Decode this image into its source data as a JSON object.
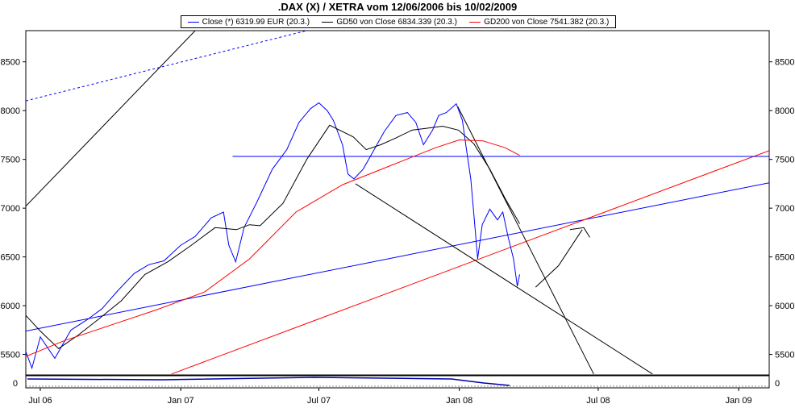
{
  "chart_data": {
    "type": "line",
    "title": ".DAX (X) / XETRA vom 12/06/2006 bis 10/02/2009",
    "legend": [
      {
        "label": "Close (*) 6319.99 EUR (20.3.)",
        "color": "#0000ff"
      },
      {
        "label": "GD50 von Close 6834.339 (20.3.)",
        "color": "#000000"
      },
      {
        "label": "GD200 von Close 7541.382 (20.3.)",
        "color": "#ff0000"
      }
    ],
    "x_ticks": [
      "Jul 06",
      "Jan 07",
      "Jul 07",
      "Jan 08",
      "Jul 08",
      "Jan 09"
    ],
    "x_range": [
      "2006-06-12",
      "2009-02-10"
    ],
    "y_ticks": [
      5500,
      6000,
      6500,
      7000,
      7500,
      8000,
      8500
    ],
    "y_range": [
      5290,
      8820
    ],
    "volume_tick": "0",
    "grid": false,
    "series": [
      {
        "name": "Close (*) 6319.99 EUR (20.3.)",
        "color": "#0000ff",
        "x": [
          "2006-06-12",
          "2006-06-20",
          "2006-07-01",
          "2006-07-20",
          "2006-08-10",
          "2006-09-01",
          "2006-09-20",
          "2006-10-10",
          "2006-11-01",
          "2006-11-20",
          "2006-12-10",
          "2007-01-01",
          "2007-01-20",
          "2007-02-10",
          "2007-02-26",
          "2007-03-05",
          "2007-03-14",
          "2007-03-25",
          "2007-04-10",
          "2007-05-01",
          "2007-05-20",
          "2007-06-05",
          "2007-06-20",
          "2007-07-01",
          "2007-07-12",
          "2007-07-20",
          "2007-08-01",
          "2007-08-08",
          "2007-08-16",
          "2007-08-28",
          "2007-09-10",
          "2007-09-25",
          "2007-10-10",
          "2007-10-25",
          "2007-11-05",
          "2007-11-15",
          "2007-11-27",
          "2007-12-05",
          "2007-12-15",
          "2007-12-28",
          "2008-01-05",
          "2008-01-10",
          "2008-01-16",
          "2008-01-21",
          "2008-01-25",
          "2008-01-31",
          "2008-02-10",
          "2008-02-20",
          "2008-02-27",
          "2008-03-05",
          "2008-03-12",
          "2008-03-17",
          "2008-03-20"
        ],
        "values": [
          5530,
          5360,
          5680,
          5460,
          5750,
          5860,
          5970,
          6150,
          6330,
          6420,
          6460,
          6620,
          6710,
          6900,
          6960,
          6620,
          6450,
          6800,
          7050,
          7400,
          7600,
          7880,
          8020,
          8080,
          8000,
          7900,
          7650,
          7350,
          7300,
          7400,
          7580,
          7790,
          7950,
          7980,
          7880,
          7650,
          7800,
          7950,
          7980,
          8070,
          7900,
          7620,
          7300,
          6850,
          6480,
          6830,
          6990,
          6880,
          6960,
          6700,
          6480,
          6200,
          6320
        ]
      },
      {
        "name": "GD50 von Close 6834.339 (20.3.)",
        "color": "#000000",
        "x": [
          "2006-06-12",
          "2006-07-01",
          "2006-07-25",
          "2006-08-20",
          "2006-09-15",
          "2006-10-15",
          "2006-11-15",
          "2006-12-15",
          "2007-01-15",
          "2007-02-15",
          "2007-03-15",
          "2007-04-01",
          "2007-04-15",
          "2007-05-15",
          "2007-06-15",
          "2007-07-15",
          "2007-08-15",
          "2007-09-01",
          "2007-09-20",
          "2007-10-10",
          "2007-10-31",
          "2007-11-20",
          "2007-12-10",
          "2007-12-31",
          "2008-01-20",
          "2008-02-10",
          "2008-03-01",
          "2008-03-20"
        ],
        "values": [
          5900,
          5740,
          5560,
          5700,
          5860,
          6050,
          6320,
          6450,
          6620,
          6800,
          6780,
          6830,
          6820,
          7050,
          7500,
          7850,
          7730,
          7600,
          7650,
          7720,
          7800,
          7820,
          7840,
          7800,
          7660,
          7400,
          7100,
          6840
        ]
      },
      {
        "name": "GD200 von Close 7541.382 (20.3.)",
        "color": "#ff0000",
        "x": [
          "2006-06-12",
          "2006-08-01",
          "2006-10-01",
          "2006-12-01",
          "2007-02-01",
          "2007-04-01",
          "2007-06-01",
          "2007-08-01",
          "2007-10-01",
          "2007-12-01",
          "2008-01-01",
          "2008-02-01",
          "2008-03-01",
          "2008-03-20"
        ],
        "values": [
          5480,
          5640,
          5800,
          5960,
          6140,
          6480,
          6960,
          7240,
          7430,
          7620,
          7700,
          7690,
          7620,
          7541
        ]
      }
    ],
    "trendlines": [
      {
        "color": "#0000ff",
        "x": [
          "2006-06-12",
          "2009-02-10"
        ],
        "values": [
          5740,
          7260
        ]
      },
      {
        "color": "#ff0000",
        "x": [
          "2006-12-20",
          "2009-02-10"
        ],
        "values": [
          5300,
          7590
        ]
      },
      {
        "color": "#0000ff",
        "x": [
          "2007-03-10",
          "2009-02-10"
        ],
        "values": [
          7530,
          7530
        ]
      },
      {
        "color": "#000000",
        "x": [
          "2006-06-12",
          "2007-01-20"
        ],
        "values": [
          7020,
          8820
        ]
      },
      {
        "color": "#0000ff",
        "dashed": true,
        "x": [
          "2006-06-12",
          "2007-06-15"
        ],
        "values": [
          8100,
          8820
        ]
      },
      {
        "color": "#000000",
        "x": [
          "2007-08-18",
          "2008-09-10"
        ],
        "values": [
          7250,
          5300
        ]
      },
      {
        "color": "#000000",
        "x": [
          "2007-12-30",
          "2008-06-25"
        ],
        "values": [
          8040,
          5300
        ]
      },
      {
        "color": "#000000",
        "x": [
          "2008-04-10",
          "2008-05-10",
          "2008-06-10"
        ],
        "values": [
          6190,
          6410,
          6780
        ]
      },
      {
        "color": "#000000",
        "x": [
          "2008-05-25",
          "2008-06-12",
          "2008-06-20"
        ],
        "values": [
          6780,
          6800,
          6700
        ]
      }
    ]
  }
}
